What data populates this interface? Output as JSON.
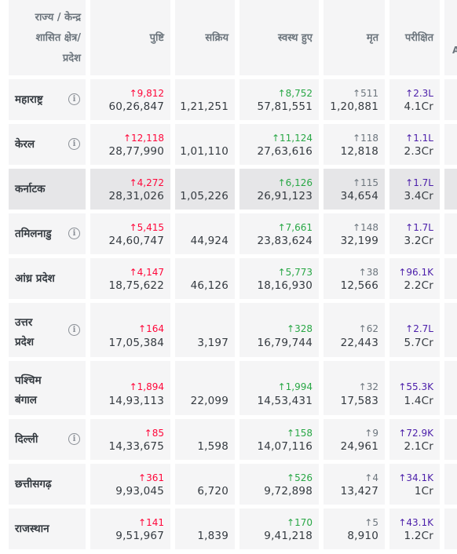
{
  "headers": {
    "state": [
      "राज्य / केन्द्र",
      "शासित क्षेत्र/",
      "प्रदेश"
    ],
    "confirmed": "पुष्टि",
    "active": "सक्रिय",
    "recovered": "स्वस्थ हुए",
    "deceased": "मृत",
    "tested": "परीक्षित",
    "partial": "A"
  },
  "colors": {
    "confirmed_delta": "#ff073a",
    "recovered_delta": "#28a745",
    "deceased_delta": "#6c757d",
    "tested_delta": "#4b1eaa"
  },
  "rows": [
    {
      "name": "महाराष्ट्र",
      "name2": "",
      "info": true,
      "c_delta": "↑9,812",
      "confirmed": "60,26,847",
      "active": "1,21,251",
      "r_delta": "↑8,752",
      "recovered": "57,81,551",
      "d_delta": "↑511",
      "deceased": "1,20,881",
      "t_delta": "↑2.3L",
      "tested": "4.1Cr"
    },
    {
      "name": "केरल",
      "name2": "",
      "info": true,
      "c_delta": "↑12,118",
      "confirmed": "28,77,990",
      "active": "1,01,110",
      "r_delta": "↑11,124",
      "recovered": "27,63,616",
      "d_delta": "↑118",
      "deceased": "12,818",
      "t_delta": "↑1.1L",
      "tested": "2.3Cr"
    },
    {
      "name": "कर्नाटक",
      "name2": "",
      "info": false,
      "c_delta": "↑4,272",
      "confirmed": "28,31,026",
      "active": "1,05,226",
      "r_delta": "↑6,126",
      "recovered": "26,91,123",
      "d_delta": "↑115",
      "deceased": "34,654",
      "t_delta": "↑1.7L",
      "tested": "3.4Cr"
    },
    {
      "name": "तमिलनाडु",
      "name2": "",
      "info": true,
      "c_delta": "↑5,415",
      "confirmed": "24,60,747",
      "active": "44,924",
      "r_delta": "↑7,661",
      "recovered": "23,83,624",
      "d_delta": "↑148",
      "deceased": "32,199",
      "t_delta": "↑1.7L",
      "tested": "3.2Cr"
    },
    {
      "name": "आंध्र प्रदेश",
      "name2": "",
      "info": false,
      "c_delta": "↑4,147",
      "confirmed": "18,75,622",
      "active": "46,126",
      "r_delta": "↑5,773",
      "recovered": "18,16,930",
      "d_delta": "↑38",
      "deceased": "12,566",
      "t_delta": "↑96.1K",
      "tested": "2.2Cr"
    },
    {
      "name": "उत्तर",
      "name2": "प्रदेश",
      "info": true,
      "c_delta": "↑164",
      "confirmed": "17,05,384",
      "active": "3,197",
      "r_delta": "↑328",
      "recovered": "16,79,744",
      "d_delta": "↑62",
      "deceased": "22,443",
      "t_delta": "↑2.7L",
      "tested": "5.7Cr"
    },
    {
      "name": "पश्चिम",
      "name2": "बंगाल",
      "info": false,
      "c_delta": "↑1,894",
      "confirmed": "14,93,113",
      "active": "22,099",
      "r_delta": "↑1,994",
      "recovered": "14,53,431",
      "d_delta": "↑32",
      "deceased": "17,583",
      "t_delta": "↑55.3K",
      "tested": "1.4Cr"
    },
    {
      "name": "दिल्ली",
      "name2": "",
      "info": true,
      "c_delta": "↑85",
      "confirmed": "14,33,675",
      "active": "1,598",
      "r_delta": "↑158",
      "recovered": "14,07,116",
      "d_delta": "↑9",
      "deceased": "24,961",
      "t_delta": "↑72.9K",
      "tested": "2.1Cr"
    },
    {
      "name": "छत्तीसगढ़",
      "name2": "",
      "info": false,
      "c_delta": "↑361",
      "confirmed": "9,93,045",
      "active": "6,720",
      "r_delta": "↑526",
      "recovered": "9,72,898",
      "d_delta": "↑4",
      "deceased": "13,427",
      "t_delta": "↑34.1K",
      "tested": "1Cr"
    },
    {
      "name": "राजस्थान",
      "name2": "",
      "info": false,
      "c_delta": "↑141",
      "confirmed": "9,51,967",
      "active": "1,839",
      "r_delta": "↑170",
      "recovered": "9,41,218",
      "d_delta": "↑5",
      "deceased": "8,910",
      "t_delta": "↑43.1K",
      "tested": "1.2Cr"
    }
  ]
}
